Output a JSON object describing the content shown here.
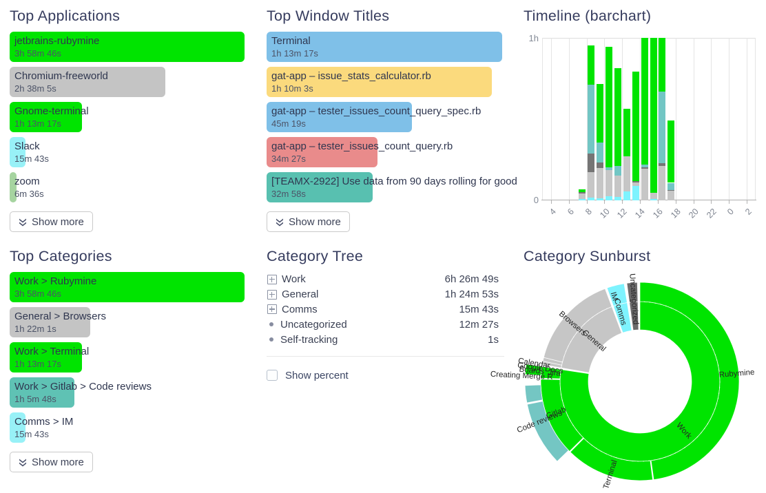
{
  "panels": {
    "apps": {
      "title": "Top Applications",
      "show_more": "Show more",
      "items": [
        {
          "name": "jetbrains-rubymine",
          "duration": "3h 58m 46s",
          "color": "#00e400",
          "width_pct": 100
        },
        {
          "name": "Chromium-freeworld",
          "duration": "2h 38m 5s",
          "color": "#c4c4c4",
          "width_pct": 66.2
        },
        {
          "name": "Gnome-terminal",
          "duration": "1h 13m 17s",
          "color": "#00e400",
          "width_pct": 30.7
        },
        {
          "name": "Slack",
          "duration": "15m 43s",
          "color": "#98f1f7",
          "width_pct": 6.6
        },
        {
          "name": "zoom",
          "duration": "6m 36s",
          "color": "#a6d4a0",
          "width_pct": 2.9
        }
      ]
    },
    "titles": {
      "title": "Top Window Titles",
      "show_more": "Show more",
      "items": [
        {
          "name": "Terminal",
          "duration": "1h 13m 17s",
          "color": "#7fc0e8",
          "width_pct": 100
        },
        {
          "name": "gat-app – issue_stats_calculator.rb",
          "duration": "1h 10m 3s",
          "color": "#fbda7d",
          "width_pct": 95.6
        },
        {
          "name": "gat-app – tester_issues_count_query_spec.rb",
          "duration": "45m 19s",
          "color": "#7fc0e8",
          "width_pct": 61.8
        },
        {
          "name": "gat-app – tester_issues_count_query.rb",
          "duration": "34m 27s",
          "color": "#e98b8b",
          "width_pct": 47.0
        },
        {
          "name": "[TEAMX-2922] Use data from 90 days rolling for good",
          "duration": "32m 58s",
          "color": "#58c0b0",
          "width_pct": 45.0
        }
      ]
    },
    "categories": {
      "title": "Top Categories",
      "show_more": "Show more",
      "items": [
        {
          "name": "Work > Rubymine",
          "duration": "3h 58m 46s",
          "color": "#00e400",
          "width_pct": 100
        },
        {
          "name": "General > Browsers",
          "duration": "1h 22m 1s",
          "color": "#c4c4c4",
          "width_pct": 34.4
        },
        {
          "name": "Work > Terminal",
          "duration": "1h 13m 17s",
          "color": "#00e400",
          "width_pct": 30.7
        },
        {
          "name": "Work > Gitlab > Code reviews",
          "duration": "1h 5m 48s",
          "color": "#5fc2b4",
          "width_pct": 27.6
        },
        {
          "name": "Comms > IM",
          "duration": "15m 43s",
          "color": "#98f1f7",
          "width_pct": 6.6
        }
      ]
    },
    "timeline": {
      "title": "Timeline (barchart)",
      "y_top_label": "1h",
      "y_bottom_label": "0"
    },
    "tree": {
      "title": "Category Tree",
      "show_percent_label": "Show percent",
      "rows": [
        {
          "label": "Work",
          "duration": "6h 26m 49s",
          "expandable": true
        },
        {
          "label": "General",
          "duration": "1h 24m 53s",
          "expandable": true
        },
        {
          "label": "Comms",
          "duration": "15m 43s",
          "expandable": true
        },
        {
          "label": "Uncategorized",
          "duration": "12m 27s",
          "expandable": false
        },
        {
          "label": "Self-tracking",
          "duration": "1s",
          "expandable": false
        }
      ]
    },
    "sunburst": {
      "title": "Category Sunburst"
    }
  },
  "chart_data": [
    {
      "type": "bar",
      "variant": "stacked-hourly-timeline",
      "title": "Timeline (barchart)",
      "ylim": [
        "0",
        "1h"
      ],
      "x_axis_hours_range": [
        3,
        27
      ],
      "gridline_hours": [
        4,
        6,
        8,
        10,
        12,
        14,
        16,
        18,
        20,
        22,
        24,
        26
      ],
      "x_tick_labels": [
        "4",
        "6",
        "8",
        "10",
        "12",
        "14",
        "16",
        "18",
        "20",
        "22",
        "0",
        "2"
      ],
      "hours": [
        7,
        8,
        9,
        10,
        11,
        12,
        13,
        14,
        15,
        16,
        17
      ],
      "stack_order": "bottom-to-top",
      "series": [
        {
          "name": "cyan-segment",
          "color": "#7ef3fe",
          "minutes": [
            0.4,
            1.0,
            0.8,
            1.6,
            1.3,
            3.2,
            5.4,
            0,
            0.4,
            0,
            0
          ]
        },
        {
          "name": "light-gray-segment",
          "color": "#c6c6c6",
          "minutes": [
            2.2,
            9.4,
            11.2,
            9.7,
            7.9,
            13.0,
            1.2,
            11.8,
            2.5,
            12.7,
            3.5
          ]
        },
        {
          "name": "dark-gray-segment",
          "color": "#757575",
          "minutes": [
            0.5,
            7.0,
            2.0,
            0,
            0,
            0,
            0.5,
            0.5,
            0,
            1.0,
            0.4
          ]
        },
        {
          "name": "teal-segment",
          "color": "#72c6c4",
          "minutes": [
            0,
            25.3,
            7.3,
            1.0,
            3.4,
            0,
            0,
            1.0,
            0,
            26.5,
            2.6
          ]
        },
        {
          "name": "green-segment",
          "color": "#00e400",
          "minutes": [
            1.0,
            14.4,
            21.7,
            44.4,
            36.3,
            17.6,
            40.4,
            46.7,
            57.2,
            19.9,
            23.0
          ]
        }
      ]
    },
    {
      "type": "pie",
      "variant": "sunburst",
      "title": "Category Sunburst",
      "rings_radii": {
        "hole": 75,
        "ring1": [
          75,
          116
        ],
        "ring2": [
          116,
          144
        ],
        "ring3": [
          144,
          167
        ]
      },
      "arcs": [
        {
          "label": "Work",
          "ring": 1,
          "start": 0,
          "end": 278.6,
          "color": "#00e400"
        },
        {
          "label": "General",
          "ring": 1,
          "start": 279.8,
          "end": 339.4,
          "color": "#c6c6c6"
        },
        {
          "label": "Comms",
          "ring": 1,
          "start": 340.6,
          "end": 350.8,
          "color": "#7ef3fe"
        },
        {
          "label": "Uncategorized",
          "ring": 1,
          "start": 352.4,
          "end": 358.5,
          "color": "#6b6b6b"
        },
        {
          "label": "Rubymine",
          "ring": 2,
          "start": 0,
          "end": 172.0,
          "color": "#00e400"
        },
        {
          "label": "Terminal",
          "ring": 2,
          "start": 172.6,
          "end": 224.6,
          "color": "#00e400"
        },
        {
          "label": "Gitlab",
          "ring": 2,
          "start": 225.2,
          "end": 271.3,
          "color": "#00e400"
        },
        {
          "label": "Jira",
          "ring": 2,
          "start": 271.9,
          "end": 278.6,
          "color": "#00e400"
        },
        {
          "label": "Google Docs",
          "ring": 2,
          "start": 279.8,
          "end": 281.8,
          "color": "#c6c6c6"
        },
        {
          "label": "Calendar",
          "ring": 2,
          "start": 281.8,
          "end": 284.0,
          "color": "#c6c6c6"
        },
        {
          "label": "Browsers",
          "ring": 2,
          "start": 284.0,
          "end": 339.4,
          "color": "#c6c6c6"
        },
        {
          "label": "IM",
          "ring": 2,
          "start": 340.6,
          "end": 350.8,
          "color": "#7ef3fe"
        },
        {
          "label": "Uncategorized",
          "ring": 2,
          "start": 352.4,
          "end": 358.5,
          "color": "#6b6b6b"
        },
        {
          "label": "Code reviews",
          "ring": 3,
          "start": 226.0,
          "end": 258.5,
          "color": "#74c6c3"
        },
        {
          "label": "Creating Merge R",
          "ring": 3,
          "start": 259.3,
          "end": 268.0,
          "color": "#74c6c3"
        },
        {
          "label": "Boards",
          "ring": 3,
          "start": 273.5,
          "end": 278.6,
          "color": "#00e400"
        }
      ],
      "labels": [
        {
          "text": "Work",
          "angle": 138.4,
          "radius": 96,
          "rotation": 48
        },
        {
          "text": "Rubymine",
          "angle": 85.5,
          "radius": 141,
          "rotation": -4.5
        },
        {
          "text": "Terminal",
          "angle": 197.5,
          "radius": 142,
          "rotation": -72.5
        },
        {
          "text": "Gitlab",
          "angle": 249.3,
          "radius": 130,
          "rotation": -20.7
        },
        {
          "text": "Code reviews",
          "angle": 248.0,
          "radius": 157,
          "rotation": -22
        },
        {
          "text": "Creating Merge R",
          "angle": 272.7,
          "radius": 172,
          "rotation": 2.7
        },
        {
          "text": "Jira",
          "angle": 275.5,
          "radius": 125,
          "rotation": 5.5
        },
        {
          "text": "Boards",
          "angle": 275.7,
          "radius": 158,
          "rotation": 5.7
        },
        {
          "text": "Google Docs",
          "angle": 277.5,
          "radius": 146,
          "rotation": 7.5
        },
        {
          "text": "Calendar",
          "angle": 279.6,
          "radius": 156,
          "rotation": 9.6
        },
        {
          "text": "General",
          "angle": 311.4,
          "radius": 89,
          "rotation": 41.4
        },
        {
          "text": "Browsers",
          "angle": 310.6,
          "radius": 129,
          "rotation": 40.6
        },
        {
          "text": "Comms",
          "angle": 344.0,
          "radius": 105,
          "rotation": 74
        },
        {
          "text": "IM",
          "angle": 343.0,
          "radius": 129,
          "rotation": 73
        },
        {
          "text": "Uncategorized",
          "angle": 355.7,
          "radius": 120,
          "rotation": 85.7
        }
      ]
    }
  ]
}
